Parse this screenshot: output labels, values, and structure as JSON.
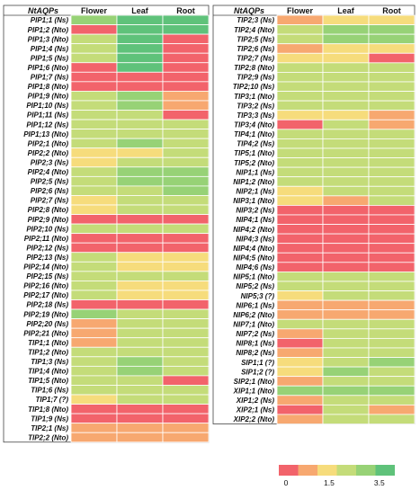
{
  "chart_data": {
    "type": "heatmap",
    "columns": [
      "Flower",
      "Leaf",
      "Root"
    ],
    "row_header": "NtAQPs",
    "scale": {
      "colors": [
        "#f2636b",
        "#f7a870",
        "#f6dc7c",
        "#c4dc79",
        "#97d276",
        "#5fc27a"
      ],
      "tick_labels": [
        "0",
        "1.5",
        "3.5"
      ]
    },
    "tables": [
      {
        "rows": [
          {
            "gene": "PIP1;1 (Ns)",
            "levels": [
              4,
              5,
              5
            ]
          },
          {
            "gene": "PIP1;2 (Nto)",
            "levels": [
              0,
              5,
              5
            ]
          },
          {
            "gene": "PIP1;3 (Nto)",
            "levels": [
              3,
              5,
              0
            ]
          },
          {
            "gene": "PIP1;4 (Ns)",
            "levels": [
              3,
              5,
              0
            ]
          },
          {
            "gene": "PIP1;5 (Ns)",
            "levels": [
              3,
              5,
              0
            ]
          },
          {
            "gene": "PIP1;6 (Nto)",
            "levels": [
              0,
              5,
              0
            ]
          },
          {
            "gene": "PIP1;7 (Ns)",
            "levels": [
              0,
              0,
              0
            ]
          },
          {
            "gene": "PIP1;8 (Nto)",
            "levels": [
              0,
              0,
              0
            ]
          },
          {
            "gene": "PIP1;9 (Nto)",
            "levels": [
              3,
              4,
              1
            ]
          },
          {
            "gene": "PIP1;10 (Ns)",
            "levels": [
              3,
              4,
              1
            ]
          },
          {
            "gene": "PIP1;11 (Ns)",
            "levels": [
              3,
              3,
              0
            ]
          },
          {
            "gene": "PIP1;12 (Ns)",
            "levels": [
              3,
              3,
              3
            ]
          },
          {
            "gene": "PIP1;13 (Nto)",
            "levels": [
              3,
              3,
              3
            ]
          },
          {
            "gene": "PIP2;1 (Nto)",
            "levels": [
              3,
              4,
              3
            ]
          },
          {
            "gene": "PIP2;2 (Nto)",
            "levels": [
              2,
              2,
              3
            ]
          },
          {
            "gene": "PIP2;3 (Ns)",
            "levels": [
              2,
              3,
              3
            ]
          },
          {
            "gene": "PIP2;4 (Nto)",
            "levels": [
              3,
              4,
              4
            ]
          },
          {
            "gene": "PIP2;5 (Ns)",
            "levels": [
              3,
              4,
              4
            ]
          },
          {
            "gene": "PIP2;6 (Ns)",
            "levels": [
              3,
              3,
              4
            ]
          },
          {
            "gene": "PIP2;7 (Ns)",
            "levels": [
              2,
              3,
              3
            ]
          },
          {
            "gene": "PIP2;8 (Nto)",
            "levels": [
              2,
              3,
              3
            ]
          },
          {
            "gene": "PIP2;9 (Nto)",
            "levels": [
              0,
              0,
              0
            ]
          },
          {
            "gene": "PIP2;10 (Ns)",
            "levels": [
              3,
              3,
              3
            ]
          },
          {
            "gene": "PIP2;11 (Nto)",
            "levels": [
              0,
              0,
              0
            ]
          },
          {
            "gene": "PIP2;12 (Ns)",
            "levels": [
              0,
              0,
              0
            ]
          },
          {
            "gene": "PIP2;13 (Ns)",
            "levels": [
              3,
              2,
              2
            ]
          },
          {
            "gene": "PIP2;14 (Nto)",
            "levels": [
              3,
              2,
              2
            ]
          },
          {
            "gene": "PIP2;15 (Ns)",
            "levels": [
              3,
              3,
              3
            ]
          },
          {
            "gene": "PIP2;16 (Nto)",
            "levels": [
              3,
              2,
              2
            ]
          },
          {
            "gene": "PIP2;17 (Nto)",
            "levels": [
              3,
              2,
              2
            ]
          },
          {
            "gene": "PIP2;18 (Ns)",
            "levels": [
              0,
              0,
              0
            ]
          },
          {
            "gene": "PIP2;19 (Nto)",
            "levels": [
              4,
              3,
              3
            ]
          },
          {
            "gene": "PIP2;20 (Ns)",
            "levels": [
              1,
              3,
              3
            ]
          },
          {
            "gene": "PIP2;21 (Nto)",
            "levels": [
              1,
              3,
              3
            ]
          },
          {
            "gene": "TIP1;1 (Nto)",
            "levels": [
              1,
              3,
              3
            ]
          },
          {
            "gene": "TIP1;2 (Nto)",
            "levels": [
              3,
              3,
              3
            ]
          },
          {
            "gene": "TIP1;3 (Ns)",
            "levels": [
              3,
              4,
              3
            ]
          },
          {
            "gene": "TIP1;4 (Nto)",
            "levels": [
              3,
              4,
              3
            ]
          },
          {
            "gene": "TIP1;5 (Nto)",
            "levels": [
              3,
              3,
              0
            ]
          },
          {
            "gene": "TIP1;6 (Ns)",
            "levels": [
              3,
              3,
              3
            ]
          },
          {
            "gene": "TIP1;7 (?)",
            "levels": [
              2,
              3,
              3
            ]
          },
          {
            "gene": "TIP1;8 (Nto)",
            "levels": [
              0,
              0,
              0
            ]
          },
          {
            "gene": "TIP1;9 (Ns)",
            "levels": [
              0,
              0,
              0
            ]
          },
          {
            "gene": "TIP2;1 (Ns)",
            "levels": [
              1,
              1,
              1
            ]
          },
          {
            "gene": "TIP2;2 (Nto)",
            "levels": [
              1,
              1,
              1
            ]
          }
        ]
      },
      {
        "rows": [
          {
            "gene": "TIP2;3 (Ns)",
            "levels": [
              1,
              2,
              2
            ]
          },
          {
            "gene": "TIP2;4 (Nto)",
            "levels": [
              3,
              4,
              4
            ]
          },
          {
            "gene": "TIP2;5 (Ns)",
            "levels": [
              3,
              4,
              4
            ]
          },
          {
            "gene": "TIP2;6 (Ns)",
            "levels": [
              1,
              2,
              2
            ]
          },
          {
            "gene": "TIP2;7 (Ns)",
            "levels": [
              2,
              2,
              0
            ]
          },
          {
            "gene": "TIP2;8 (Nto)",
            "levels": [
              3,
              3,
              3
            ]
          },
          {
            "gene": "TIP2;9 (Ns)",
            "levels": [
              3,
              3,
              3
            ]
          },
          {
            "gene": "TIP2;10 (Ns)",
            "levels": [
              3,
              3,
              3
            ]
          },
          {
            "gene": "TIP3;1 (Nto)",
            "levels": [
              3,
              3,
              3
            ]
          },
          {
            "gene": "TIP3;2 (Ns)",
            "levels": [
              3,
              3,
              3
            ]
          },
          {
            "gene": "TIP3;3 (Ns)",
            "levels": [
              2,
              2,
              1
            ]
          },
          {
            "gene": "TIP3;4 (Nto)",
            "levels": [
              0,
              3,
              1
            ]
          },
          {
            "gene": "TIP4;1 (Nto)",
            "levels": [
              3,
              3,
              3
            ]
          },
          {
            "gene": "TIP4;2 (Ns)",
            "levels": [
              3,
              3,
              3
            ]
          },
          {
            "gene": "TIP5;1 (Nto)",
            "levels": [
              3,
              3,
              3
            ]
          },
          {
            "gene": "TIP5;2 (Nto)",
            "levels": [
              3,
              3,
              3
            ]
          },
          {
            "gene": "NIP1;1 (Ns)",
            "levels": [
              3,
              3,
              3
            ]
          },
          {
            "gene": "NIP1;2 (Nto)",
            "levels": [
              3,
              3,
              3
            ]
          },
          {
            "gene": "NIP2;1 (Ns)",
            "levels": [
              2,
              3,
              3
            ]
          },
          {
            "gene": "NIP3;1 (Nto)",
            "levels": [
              2,
              1,
              3
            ]
          },
          {
            "gene": "NIP3;2 (Ns)",
            "levels": [
              0,
              0,
              0
            ]
          },
          {
            "gene": "NIP4;1 (Ns)",
            "levels": [
              0,
              0,
              0
            ]
          },
          {
            "gene": "NIP4;2 (Nto)",
            "levels": [
              0,
              0,
              0
            ]
          },
          {
            "gene": "NIP4;3 (Ns)",
            "levels": [
              0,
              0,
              0
            ]
          },
          {
            "gene": "NIP4;4 (Nto)",
            "levels": [
              0,
              0,
              0
            ]
          },
          {
            "gene": "NIP4;5 (Nto)",
            "levels": [
              0,
              0,
              0
            ]
          },
          {
            "gene": "NIP4;6 (Ns)",
            "levels": [
              0,
              0,
              0
            ]
          },
          {
            "gene": "NIP5;1 (Nto)",
            "levels": [
              3,
              3,
              3
            ]
          },
          {
            "gene": "NIP5;2 (Ns)",
            "levels": [
              3,
              3,
              3
            ]
          },
          {
            "gene": "NIP5;3 (?)",
            "levels": [
              2,
              3,
              3
            ]
          },
          {
            "gene": "NIP6;1 (Ns)",
            "levels": [
              1,
              1,
              1
            ]
          },
          {
            "gene": "NIP6;2 (Nto)",
            "levels": [
              1,
              1,
              1
            ]
          },
          {
            "gene": "NIP7;1 (Nto)",
            "levels": [
              3,
              3,
              3
            ]
          },
          {
            "gene": "NIP7;2 (Ns)",
            "levels": [
              1,
              3,
              3
            ]
          },
          {
            "gene": "NIP8;1 (Ns)",
            "levels": [
              0,
              3,
              3
            ]
          },
          {
            "gene": "NIP8;2 (Ns)",
            "levels": [
              1,
              3,
              3
            ]
          },
          {
            "gene": "SIP1;1 (?)",
            "levels": [
              2,
              3,
              4
            ]
          },
          {
            "gene": "SIP1;2 (?)",
            "levels": [
              2,
              4,
              3
            ]
          },
          {
            "gene": "SIP2;1 (Nto)",
            "levels": [
              1,
              3,
              3
            ]
          },
          {
            "gene": "XIP1;1 (Nto)",
            "levels": [
              4,
              4,
              4
            ]
          },
          {
            "gene": "XIP1;2 (Ns)",
            "levels": [
              1,
              3,
              3
            ]
          },
          {
            "gene": "XIP2;1 (Ns)",
            "levels": [
              0,
              3,
              1
            ]
          },
          {
            "gene": "XIP2;2 (Nto)",
            "levels": [
              1,
              3,
              3
            ]
          }
        ]
      }
    ]
  }
}
